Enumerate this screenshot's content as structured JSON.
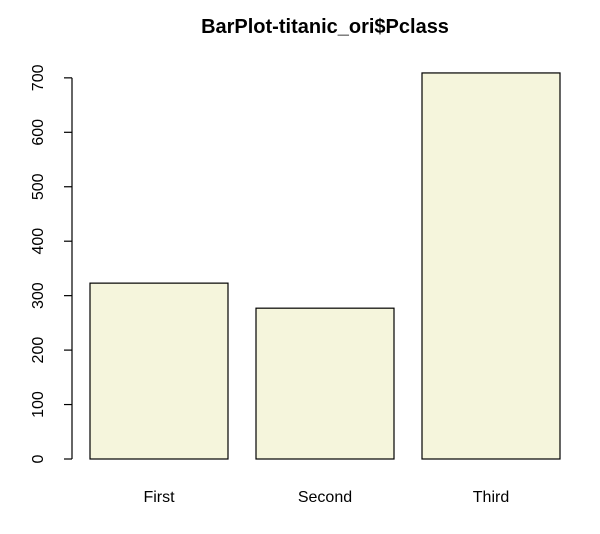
{
  "chart_data": {
    "type": "bar",
    "title": "BarPlot-titanic_ori$Pclass",
    "xlabel": "",
    "ylabel": "",
    "categories": [
      "First",
      "Second",
      "Third"
    ],
    "values": [
      323,
      277,
      709
    ],
    "ylim": [
      0,
      709
    ],
    "yticks": [
      0,
      100,
      200,
      300,
      400,
      500,
      600,
      700
    ],
    "grid": false,
    "legend": "none",
    "bar_color": "#f5f5dc",
    "border_color": "#000000"
  }
}
